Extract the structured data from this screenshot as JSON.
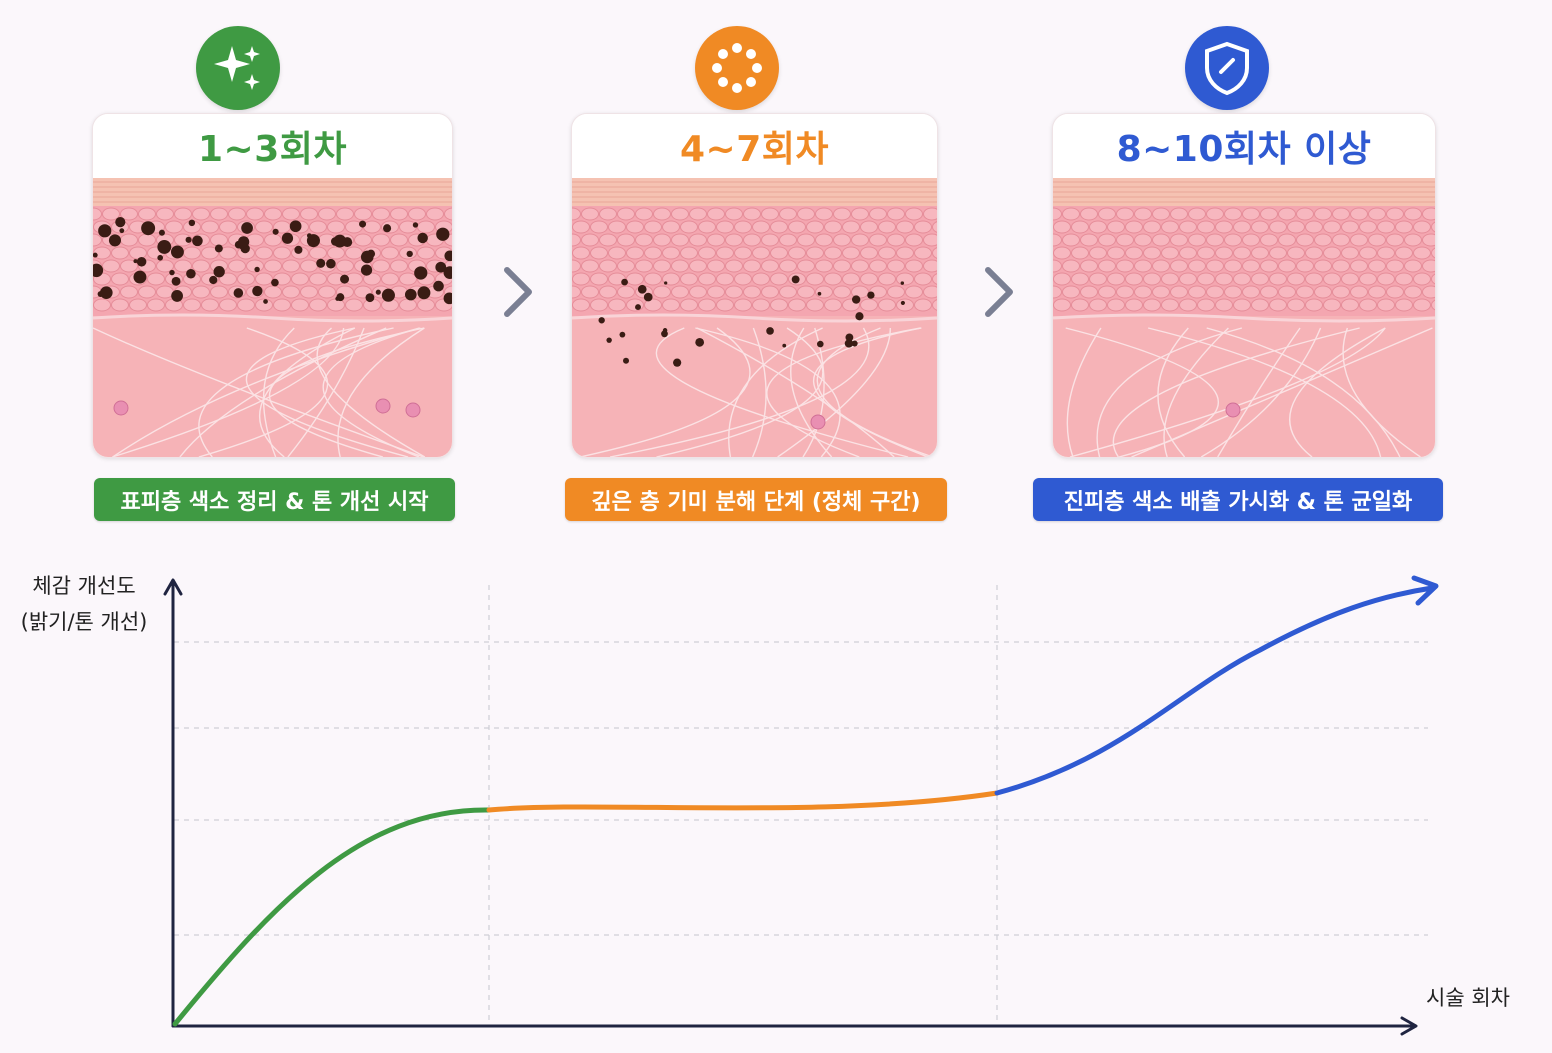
{
  "stages": [
    {
      "title": "1~3회차",
      "caption": "표피층 색소 정리 & 톤 개선 시작",
      "color": "#3f9a43",
      "icon": "sparkle-icon",
      "pigment": "heavy"
    },
    {
      "title": "4~7회차",
      "caption": "깊은 층 기미 분해 단계 (정체 구간)",
      "color": "#f08a24",
      "icon": "dots-ring-icon",
      "pigment": "scattered"
    },
    {
      "title": "8~10회차 이상",
      "caption": "진피층 색소 배출 가시화 & 톤 균일화",
      "color": "#2f5ad2",
      "icon": "shield-check-icon",
      "pigment": "none"
    }
  ],
  "chart": {
    "y_label_line1": "체감 개선도",
    "y_label_line2": "(밝기/톤 개선)",
    "x_label": "시술 회차"
  },
  "chart_data": {
    "type": "line",
    "x_axis": "시술 회차",
    "y_axis": "체감 개선도 (밝기/톤 개선)",
    "segments": [
      {
        "stage": "1~3회차",
        "color": "#3f9a43",
        "trend": "rapid rise then leveling"
      },
      {
        "stage": "4~7회차",
        "color": "#f08a24",
        "trend": "plateau"
      },
      {
        "stage": "8~10회차 이상",
        "color": "#2f5ad2",
        "trend": "steep rise"
      }
    ],
    "grid": true
  }
}
